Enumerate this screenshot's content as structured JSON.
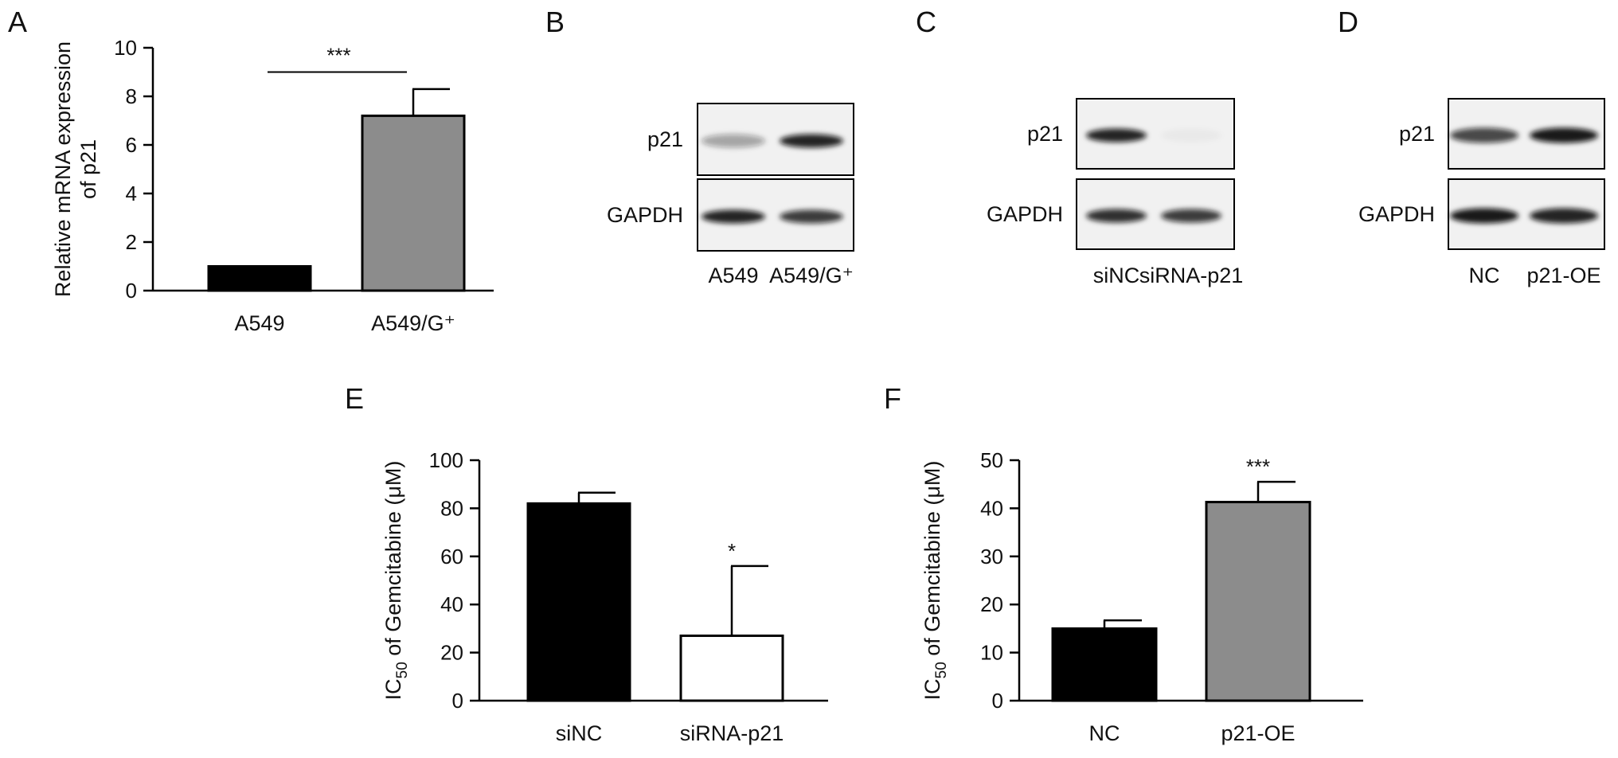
{
  "colors": {
    "black": "#000000",
    "gray": "#8c8c8c",
    "white": "#ffffff",
    "blot_bg": "#f1f1f1",
    "blot_bg_dark": "#e2e2e2"
  },
  "chart_data": [
    {
      "panel": "A",
      "type": "bar",
      "categories": [
        "A549",
        "A549/G⁺"
      ],
      "series": [
        {
          "values": [
            1.0,
            7.2
          ],
          "errors": [
            0,
            1.1
          ],
          "colors": [
            "#000000",
            "#8c8c8c"
          ]
        }
      ],
      "ylabel_lines": [
        "Relative mRNA expression",
        "of p21"
      ],
      "ylim": [
        0,
        10
      ],
      "yticks": [
        0,
        2,
        4,
        6,
        8,
        10
      ],
      "significance": {
        "label": "***",
        "type": "bracket"
      },
      "grid": false
    },
    {
      "panel": "E",
      "type": "bar",
      "categories": [
        "siNC",
        "siRNA-p21"
      ],
      "series": [
        {
          "values": [
            82,
            27
          ],
          "errors": [
            4.5,
            29
          ],
          "colors": [
            "#000000",
            "#ffffff"
          ]
        }
      ],
      "ylabel_parts": [
        "IC",
        "50",
        " of Gemcitabine (μM)"
      ],
      "ylim": [
        0,
        100
      ],
      "yticks": [
        0,
        20,
        40,
        60,
        80,
        100
      ],
      "significance": {
        "label": "*",
        "type": "above-bar",
        "bar_index": 1
      },
      "grid": false
    },
    {
      "panel": "F",
      "type": "bar",
      "categories": [
        "NC",
        "p21-OE"
      ],
      "series": [
        {
          "values": [
            15,
            41.3
          ],
          "errors": [
            1.7,
            4.2
          ],
          "colors": [
            "#000000",
            "#8c8c8c"
          ]
        }
      ],
      "ylabel_parts": [
        "IC",
        "50",
        " of Gemcitabine (μM)"
      ],
      "ylim": [
        0,
        50
      ],
      "yticks": [
        0,
        10,
        20,
        30,
        40,
        50
      ],
      "significance": {
        "label": "***",
        "type": "above-bar",
        "bar_index": 1
      },
      "grid": false
    }
  ],
  "blots": [
    {
      "panel": "B",
      "rows": [
        "p21",
        "GAPDH"
      ],
      "lanes": [
        "A549",
        "A549/G⁺"
      ],
      "band_intensity": [
        [
          0.35,
          0.9
        ],
        [
          0.9,
          0.8
        ]
      ]
    },
    {
      "panel": "C",
      "rows": [
        "p21",
        "GAPDH"
      ],
      "lanes": [
        "siNC",
        "siRNA-p21"
      ],
      "band_intensity": [
        [
          0.9,
          0.03
        ],
        [
          0.85,
          0.8
        ]
      ]
    },
    {
      "panel": "D",
      "rows": [
        "p21",
        "GAPDH"
      ],
      "lanes": [
        "NC",
        "p21-OE"
      ],
      "band_intensity": [
        [
          0.75,
          0.95
        ],
        [
          0.95,
          0.9
        ]
      ]
    }
  ]
}
